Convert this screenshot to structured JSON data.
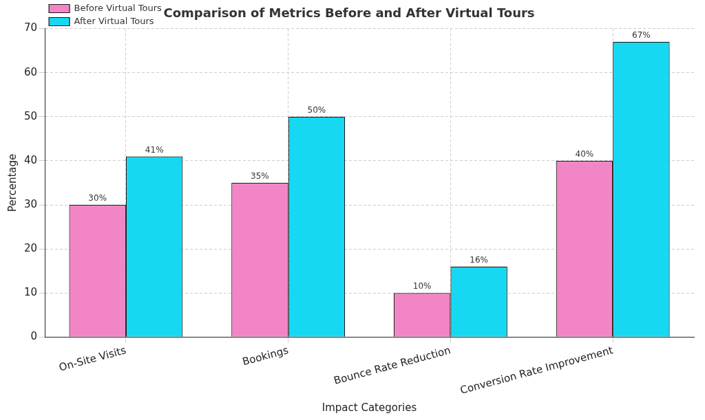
{
  "chart_data": {
    "type": "bar",
    "title": "Comparison of Metrics Before and After Virtual Tours",
    "x_label": "Impact Categories",
    "y_label": "Percentage",
    "categories": [
      "On-Site Visits",
      "Bookings",
      "Bounce Rate Reduction",
      "Conversion Rate Improvement"
    ],
    "series": [
      {
        "name": "Before Virtual Tours",
        "color": "#f285c5",
        "values": [
          30,
          35,
          10,
          40
        ],
        "value_labels": [
          "30%",
          "35%",
          "10%",
          "40%"
        ]
      },
      {
        "name": "After Virtual Tours",
        "color": "#17d8f2",
        "values": [
          41,
          50,
          16,
          67
        ],
        "value_labels": [
          "41%",
          "50%",
          "16%",
          "67%"
        ]
      }
    ],
    "ylim": [
      0,
      70
    ],
    "yticks": [
      0,
      10,
      20,
      30,
      40,
      50,
      60,
      70
    ],
    "grid": true,
    "legend": "upper left",
    "data_labels": true
  }
}
